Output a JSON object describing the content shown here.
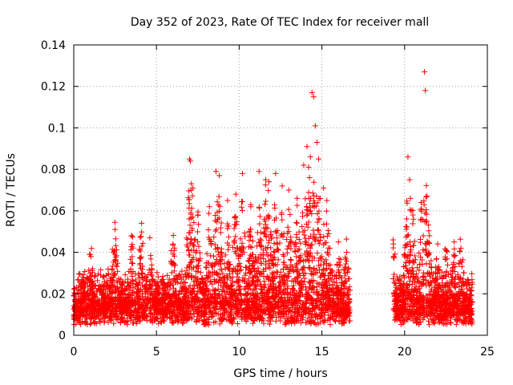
{
  "chart_data": {
    "type": "scatter",
    "title": "Day 352 of 2023, Rate Of TEC Index for receiver mall",
    "xlabel": "GPS time / hours",
    "ylabel": "ROTI / TECUs",
    "xlim": [
      0,
      25
    ],
    "ylim": [
      0,
      0.14
    ],
    "x_ticks": [
      0,
      5,
      10,
      15,
      20,
      25
    ],
    "x_tick_labels": [
      "0",
      "5",
      "10",
      "15",
      "20",
      "25"
    ],
    "y_ticks": [
      0,
      0.02,
      0.04,
      0.06,
      0.08,
      0.1,
      0.12,
      0.14
    ],
    "y_tick_labels": [
      "0",
      "0.02",
      "0.04",
      "0.06",
      "0.08",
      "0.1",
      "0.12",
      "0.14"
    ],
    "grid": true,
    "marker": "+",
    "color": "#ff0000",
    "data_gaps_hours": [
      [
        16.7,
        19.3
      ]
    ],
    "series": [
      {
        "x": [
          0.1,
          0.3,
          0.6,
          0.9,
          1.1,
          1.3,
          1.6,
          1.9,
          2.1,
          2.4,
          2.6,
          2.9,
          3.1,
          3.4,
          3.6,
          3.9,
          4.1,
          4.4,
          4.6,
          4.9,
          5.1,
          5.4,
          5.6,
          5.9,
          6.1,
          6.4,
          6.6,
          6.9,
          7.1,
          7.4,
          7.6,
          7.9,
          8.1,
          8.4,
          8.6,
          8.9,
          9.1,
          9.4,
          9.6,
          9.9,
          10.1,
          10.4,
          10.6,
          10.9,
          11.1,
          11.4,
          11.6,
          11.9,
          12.1,
          12.4,
          12.6,
          12.9,
          13.1,
          13.4,
          13.6,
          13.9,
          14.1,
          14.4,
          14.6,
          14.9,
          15.1,
          15.4,
          15.6,
          15.9,
          16.1,
          16.4,
          19.4,
          19.6,
          19.9,
          20.1,
          20.4,
          20.6,
          20.9,
          21.1,
          21.4,
          21.6,
          21.9,
          22.1,
          22.4,
          22.6,
          22.9,
          23.1,
          23.4,
          23.6,
          23.9,
          0.2,
          0.5,
          0.8,
          1.0,
          1.2,
          1.5,
          1.8,
          2.0,
          2.3,
          2.5,
          2.8,
          3.0,
          3.3,
          3.5,
          3.8,
          4.0,
          4.3,
          4.5,
          4.8,
          5.0,
          5.3,
          5.5,
          5.8,
          6.0,
          6.3,
          6.5,
          6.8,
          7.0,
          7.3,
          7.5,
          7.8,
          8.0,
          8.3,
          8.5,
          8.8,
          9.0,
          9.3,
          9.5,
          9.8,
          10.0,
          10.3,
          10.5,
          10.8,
          11.0,
          11.3,
          11.5,
          11.8,
          12.0,
          12.3,
          12.5,
          12.8,
          13.0,
          13.3,
          13.5,
          13.8,
          14.0,
          14.3,
          14.5,
          14.8,
          15.0,
          15.3,
          15.5,
          15.8,
          16.0,
          16.3,
          16.6,
          19.5,
          19.8,
          20.0,
          20.3,
          20.5,
          20.8,
          21.0,
          21.3,
          21.5,
          21.8,
          22.0,
          22.3,
          22.5,
          22.8,
          23.0,
          23.3,
          23.5,
          23.8,
          24.0,
          1.0,
          2.4,
          2.5,
          3.5,
          4.1,
          4.6,
          6.0,
          7.0,
          7.05,
          7.2,
          7.5,
          8.2,
          8.6,
          8.8,
          9.3,
          9.8,
          10.2,
          10.7,
          11.2,
          11.6,
          11.8,
          12.2,
          12.6,
          13.0,
          13.5,
          13.9,
          14.1,
          14.2,
          14.25,
          14.3,
          14.4,
          14.5,
          14.6,
          14.7,
          14.8,
          15.1,
          15.3,
          16.0,
          16.5,
          19.3,
          20.2,
          20.3,
          20.35,
          20.4,
          20.5,
          21.0,
          21.2,
          21.25,
          21.3,
          21.5,
          22.0,
          22.5,
          23.0,
          23.4
        ],
        "y": [
          0.012,
          0.01,
          0.018,
          0.014,
          0.02,
          0.016,
          0.022,
          0.012,
          0.018,
          0.028,
          0.014,
          0.01,
          0.02,
          0.012,
          0.016,
          0.024,
          0.03,
          0.026,
          0.018,
          0.012,
          0.014,
          0.01,
          0.012,
          0.016,
          0.02,
          0.014,
          0.01,
          0.018,
          0.028,
          0.016,
          0.012,
          0.02,
          0.022,
          0.018,
          0.03,
          0.016,
          0.014,
          0.022,
          0.018,
          0.026,
          0.02,
          0.03,
          0.024,
          0.032,
          0.028,
          0.02,
          0.034,
          0.026,
          0.03,
          0.024,
          0.028,
          0.02,
          0.032,
          0.026,
          0.036,
          0.03,
          0.04,
          0.038,
          0.03,
          0.028,
          0.034,
          0.026,
          0.022,
          0.024,
          0.018,
          0.016,
          0.02,
          0.016,
          0.012,
          0.024,
          0.03,
          0.022,
          0.016,
          0.028,
          0.018,
          0.014,
          0.02,
          0.016,
          0.024,
          0.018,
          0.012,
          0.016,
          0.014,
          0.01,
          0.008,
          0.008,
          0.014,
          0.012,
          0.022,
          0.016,
          0.012,
          0.018,
          0.026,
          0.016,
          0.022,
          0.012,
          0.018,
          0.014,
          0.01,
          0.02,
          0.034,
          0.022,
          0.018,
          0.014,
          0.01,
          0.012,
          0.014,
          0.018,
          0.016,
          0.012,
          0.016,
          0.01,
          0.014,
          0.02,
          0.012,
          0.026,
          0.024,
          0.018,
          0.026,
          0.02,
          0.018,
          0.028,
          0.024,
          0.02,
          0.022,
          0.026,
          0.02,
          0.028,
          0.024,
          0.03,
          0.026,
          0.022,
          0.028,
          0.034,
          0.026,
          0.022,
          0.03,
          0.024,
          0.028,
          0.032,
          0.036,
          0.042,
          0.032,
          0.036,
          0.03,
          0.026,
          0.03,
          0.02,
          0.018,
          0.014,
          0.012,
          0.014,
          0.01,
          0.02,
          0.026,
          0.018,
          0.022,
          0.014,
          0.024,
          0.02,
          0.016,
          0.022,
          0.018,
          0.014,
          0.012,
          0.01,
          0.014,
          0.012,
          0.018,
          0.006,
          0.039,
          0.04,
          0.051,
          0.048,
          0.054,
          0.047,
          0.044,
          0.085,
          0.084,
          0.071,
          0.058,
          0.062,
          0.079,
          0.077,
          0.065,
          0.068,
          0.078,
          0.063,
          0.079,
          0.075,
          0.074,
          0.078,
          0.072,
          0.07,
          0.066,
          0.082,
          0.091,
          0.081,
          0.076,
          0.086,
          0.117,
          0.115,
          0.101,
          0.093,
          0.085,
          0.071,
          0.065,
          0.045,
          0.04,
          0.046,
          0.086,
          0.075,
          0.066,
          0.06,
          0.058,
          0.064,
          0.127,
          0.118,
          0.055,
          0.048,
          0.044,
          0.041,
          0.038,
          0.042
        ]
      }
    ]
  }
}
